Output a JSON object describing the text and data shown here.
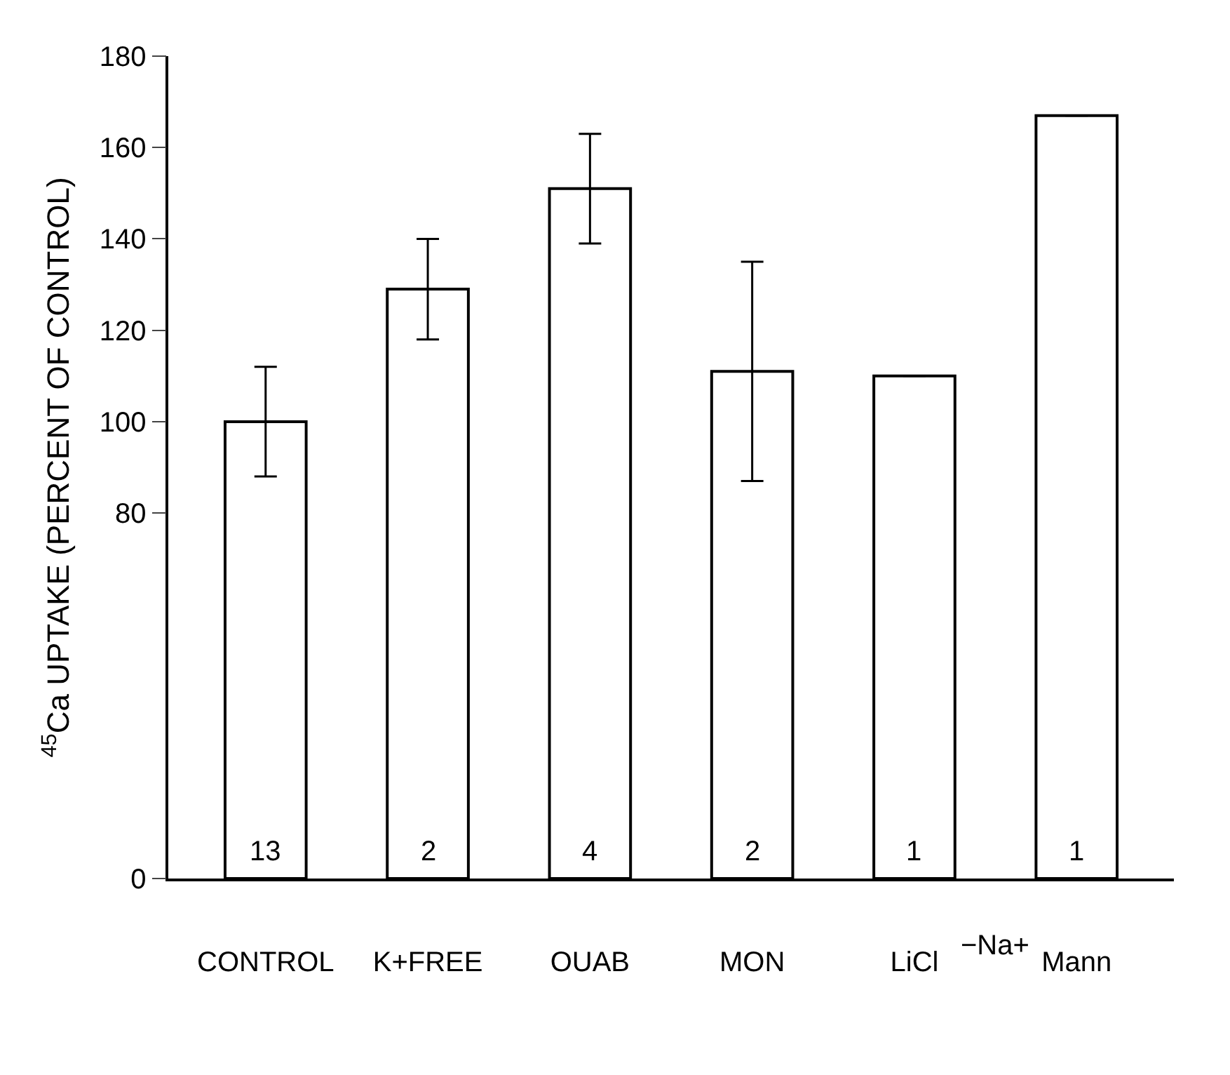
{
  "chart_data": {
    "type": "bar",
    "ylabel": "$^{45}$Ca UPTAKE (PERCENT OF CONTROL)",
    "categories": [
      "CONTROL",
      "K+FREE",
      "OUAB",
      "MON",
      "LiCl",
      "Mann"
    ],
    "values": [
      100,
      129,
      151,
      111,
      110,
      167
    ],
    "errors": [
      [
        88,
        112
      ],
      [
        118,
        140
      ],
      [
        139,
        163
      ],
      [
        87,
        135
      ],
      null,
      null
    ],
    "color": "#ffffff",
    "ylim": [
      0,
      180
    ],
    "yticks": [
      0,
      80,
      100,
      120,
      140,
      160,
      180
    ],
    "legend": false,
    "annotations": [
      "13",
      "2",
      "4",
      "2",
      "1",
      "1",
      "−Na+"
    ]
  }
}
